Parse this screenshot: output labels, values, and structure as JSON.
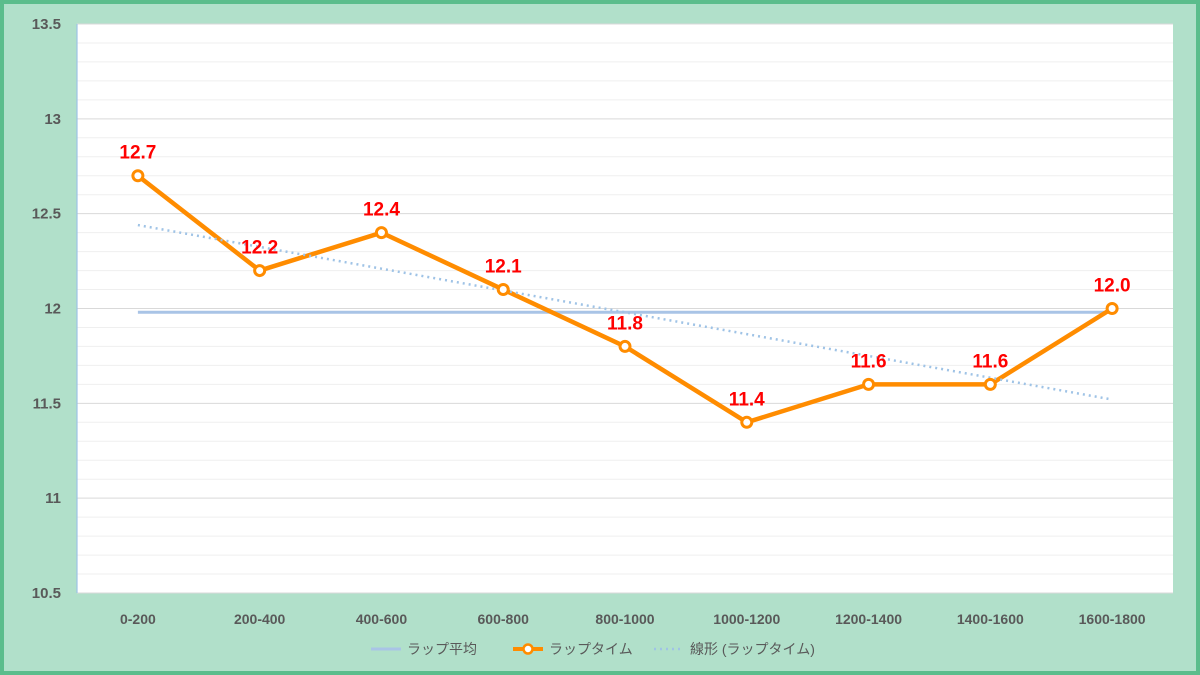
{
  "chart_data": {
    "type": "line",
    "categories": [
      "0-200",
      "200-400",
      "400-600",
      "600-800",
      "800-1000",
      "1000-1200",
      "1200-1400",
      "1400-1600",
      "1600-1800"
    ],
    "series": [
      {
        "name": "ラップ平均",
        "values": [
          11.98,
          11.98,
          11.98,
          11.98,
          11.98,
          11.98,
          11.98,
          11.98,
          11.98
        ],
        "color": "#a9c4e6",
        "style": "solid"
      },
      {
        "name": "ラップタイム",
        "values": [
          12.7,
          12.2,
          12.4,
          12.1,
          11.8,
          11.4,
          11.6,
          11.6,
          12.0
        ],
        "data_labels": [
          "12.7",
          "12.2",
          "12.4",
          "12.1",
          "11.8",
          "11.4",
          "11.6",
          "11.6",
          "12.0"
        ],
        "color": "#ff8c00",
        "style": "solid-markers"
      },
      {
        "name": "線形 (ラップタイム)",
        "values": [
          12.44,
          12.325,
          12.21,
          12.095,
          11.98,
          11.865,
          11.75,
          11.635,
          11.52
        ],
        "color": "#9fc3e6",
        "style": "dotted"
      }
    ],
    "y_ticks": [
      "10.5",
      "11",
      "11.5",
      "12",
      "12.5",
      "13",
      "13.5"
    ],
    "ylim": [
      10.5,
      13.5
    ],
    "grid": true,
    "legend": "bottom"
  }
}
